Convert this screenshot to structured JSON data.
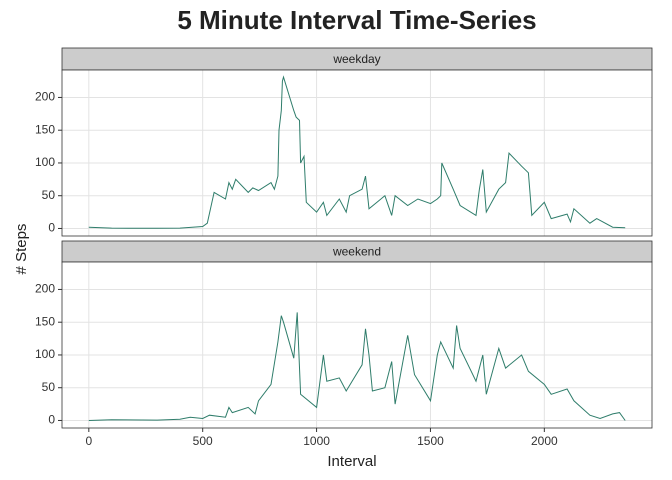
{
  "chart_data": {
    "type": "line",
    "title": "5 Minute Interval Time-Series",
    "x_label": "Interval",
    "y_label": "# Steps",
    "xlim": [
      -117.75,
      2472.75
    ],
    "xticks": [
      0,
      500,
      1000,
      1500,
      2000
    ],
    "ylim": [
      -11.5,
      241.9
    ],
    "yticks": [
      0,
      50,
      100,
      150,
      200
    ],
    "color": "#2f7d6b",
    "grid": true,
    "facets": [
      {
        "name": "weekday",
        "x": [
          0,
          100,
          200,
          300,
          400,
          500,
          520,
          550,
          600,
          615,
          630,
          645,
          700,
          720,
          745,
          800,
          815,
          830,
          835,
          845,
          850,
          855,
          900,
          910,
          925,
          930,
          945,
          955,
          1000,
          1030,
          1045,
          1100,
          1130,
          1145,
          1200,
          1215,
          1230,
          1300,
          1330,
          1345,
          1400,
          1445,
          1500,
          1530,
          1545,
          1550,
          1600,
          1630,
          1700,
          1715,
          1730,
          1745,
          1800,
          1830,
          1845,
          1900,
          1930,
          1945,
          2000,
          2030,
          2100,
          2115,
          2130,
          2200,
          2230,
          2300,
          2355
        ],
        "values": [
          2,
          0.5,
          0.3,
          0.2,
          0.5,
          3,
          8,
          55,
          45,
          70,
          60,
          75,
          55,
          62,
          58,
          70,
          60,
          80,
          150,
          180,
          225,
          231,
          180,
          170,
          165,
          100,
          110,
          40,
          25,
          40,
          20,
          45,
          25,
          50,
          60,
          80,
          30,
          50,
          20,
          50,
          35,
          45,
          38,
          45,
          50,
          100,
          60,
          35,
          20,
          60,
          90,
          25,
          60,
          70,
          115,
          95,
          85,
          20,
          40,
          15,
          22,
          10,
          30,
          8,
          15,
          2,
          1
        ]
      },
      {
        "name": "weekend",
        "x": [
          0,
          100,
          300,
          400,
          445,
          500,
          530,
          600,
          615,
          630,
          700,
          730,
          745,
          800,
          830,
          845,
          855,
          900,
          915,
          930,
          1000,
          1030,
          1045,
          1100,
          1130,
          1200,
          1215,
          1230,
          1245,
          1300,
          1330,
          1345,
          1400,
          1430,
          1500,
          1530,
          1545,
          1600,
          1615,
          1630,
          1700,
          1730,
          1745,
          1800,
          1830,
          1900,
          1930,
          2000,
          2030,
          2100,
          2130,
          2200,
          2245,
          2300,
          2330,
          2355
        ],
        "values": [
          0,
          1,
          0.5,
          2,
          5,
          3,
          8,
          5,
          20,
          12,
          20,
          10,
          30,
          55,
          120,
          160,
          150,
          95,
          165,
          40,
          20,
          100,
          60,
          65,
          45,
          85,
          140,
          100,
          45,
          50,
          90,
          25,
          130,
          70,
          30,
          100,
          120,
          80,
          145,
          110,
          60,
          100,
          40,
          110,
          80,
          100,
          75,
          55,
          40,
          48,
          30,
          8,
          3,
          10,
          12,
          0
        ]
      }
    ]
  }
}
